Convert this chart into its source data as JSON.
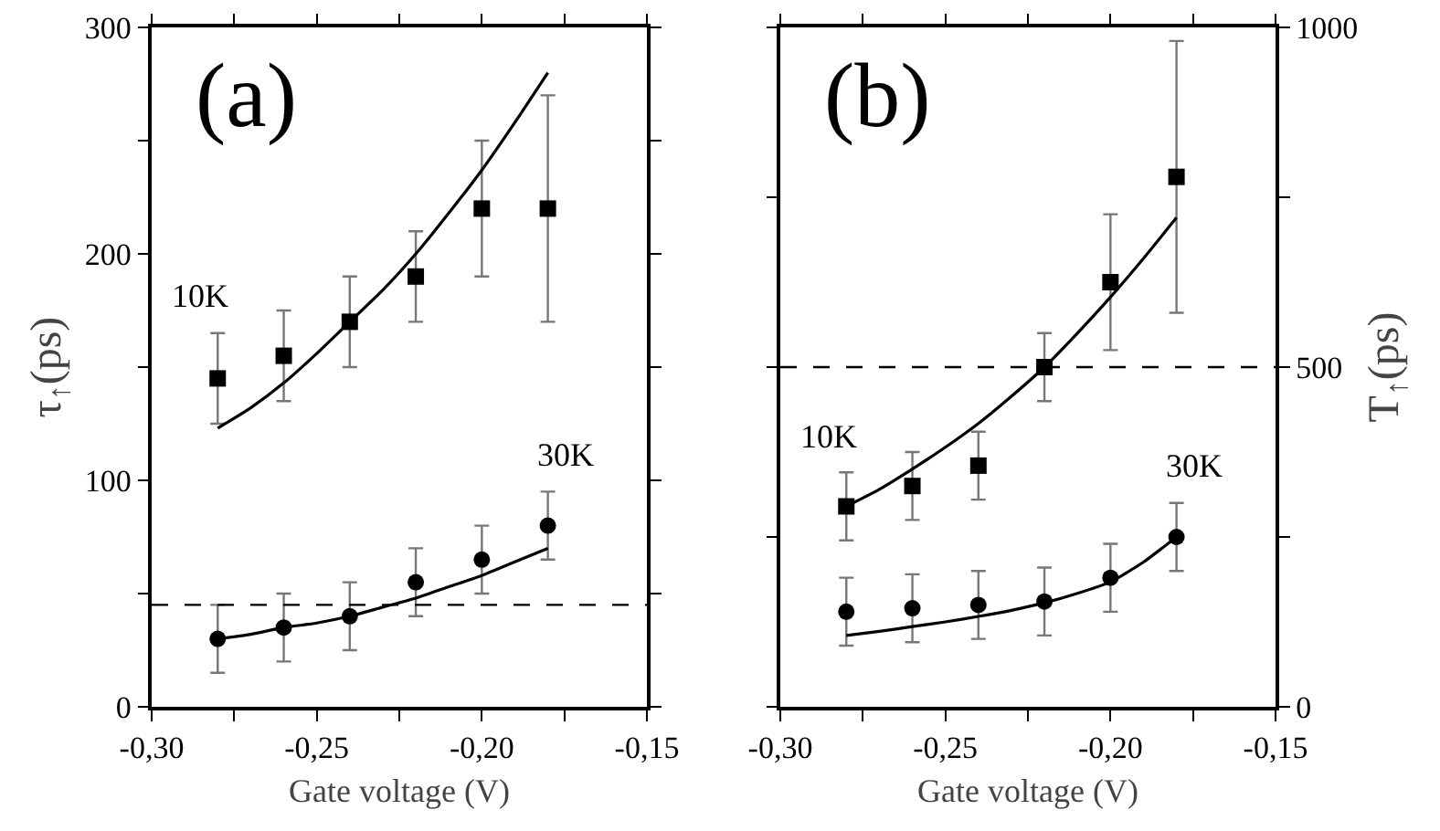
{
  "chart_data": [
    {
      "type": "scatter",
      "title": "(a)",
      "xlabel": "Gate voltage (V)",
      "ylabel": "τ$_{↑}$(ps)",
      "x": [
        -0.28,
        -0.26,
        -0.24,
        -0.22,
        -0.2,
        -0.18
      ],
      "xlim": [
        -0.3,
        -0.15
      ],
      "xticks": [
        {
          "value": -0.3,
          "label": "-0,30"
        },
        {
          "value": -0.275,
          "label": null
        },
        {
          "value": -0.25,
          "label": "-0,25"
        },
        {
          "value": -0.225,
          "label": null
        },
        {
          "value": -0.2,
          "label": "-0,20"
        },
        {
          "value": -0.175,
          "label": null
        },
        {
          "value": -0.15,
          "label": "-0,15"
        }
      ],
      "ylim": [
        0,
        300
      ],
      "yticks": [
        0,
        {
          "value": 50,
          "label": null
        },
        100,
        {
          "value": 150,
          "label": null
        },
        200,
        {
          "value": 250,
          "label": null
        },
        300
      ],
      "grid": false,
      "legend": false,
      "series": [
        {
          "name": "10K",
          "color": "#000000",
          "marker": "square",
          "values": [
            145,
            155,
            170,
            190,
            220,
            220
          ],
          "errors": [
            20,
            20,
            20,
            20,
            30,
            50
          ]
        },
        {
          "name": "30K",
          "color": "#000000",
          "marker": "circle",
          "values": [
            30,
            35,
            40,
            55,
            65,
            80
          ],
          "errors": [
            15,
            15,
            15,
            15,
            15,
            15
          ]
        },
        {
          "type": "line",
          "color": "#000000",
          "marker": "none",
          "line_style": "solid",
          "x": [
            -0.28,
            -0.27,
            -0.26,
            -0.25,
            -0.24,
            -0.23,
            -0.22,
            -0.21,
            -0.2,
            -0.19,
            -0.18
          ],
          "values": [
            123,
            132,
            143,
            156,
            170,
            184,
            200,
            218,
            237,
            258,
            280
          ]
        },
        {
          "type": "line",
          "color": "#000000",
          "marker": "none",
          "line_style": "solid",
          "x": [
            -0.28,
            -0.27,
            -0.26,
            -0.25,
            -0.24,
            -0.23,
            -0.22,
            -0.21,
            -0.2,
            -0.19,
            -0.18
          ],
          "values": [
            30,
            32,
            35,
            37,
            40,
            44,
            48,
            53,
            58,
            64,
            70
          ]
        }
      ],
      "ref_lines": [
        {
          "axis": "y",
          "value": 45,
          "color": "#000000",
          "line_style": "dashed"
        }
      ]
    },
    {
      "type": "scatter",
      "title": "(b)",
      "xlabel": "Gate voltage (V)",
      "y2label": "T$_{↑}$(ps)",
      "x": [
        -0.28,
        -0.26,
        -0.24,
        -0.22,
        -0.2,
        -0.18
      ],
      "xlim": [
        -0.3,
        -0.15
      ],
      "xticks": [
        {
          "value": -0.3,
          "label": "-0,30"
        },
        {
          "value": -0.275,
          "label": null
        },
        {
          "value": -0.25,
          "label": "-0,25"
        },
        {
          "value": -0.225,
          "label": null
        },
        {
          "value": -0.2,
          "label": "-0,20"
        },
        {
          "value": -0.175,
          "label": null
        },
        {
          "value": -0.15,
          "label": "-0,15"
        }
      ],
      "y2lim": [
        0,
        1000
      ],
      "y2ticks": [
        0,
        {
          "value": 250,
          "label": null
        },
        500,
        {
          "value": 750,
          "label": null
        },
        1000
      ],
      "grid": false,
      "legend": false,
      "series": [
        {
          "name": "10K",
          "color": "#000000",
          "marker": "square",
          "axis": "y2",
          "values": [
            295,
            325,
            355,
            500,
            625,
            780
          ],
          "errors": [
            50,
            50,
            50,
            50,
            100,
            200
          ]
        },
        {
          "name": "30K",
          "color": "#000000",
          "marker": "circle",
          "axis": "y2",
          "values": [
            140,
            145,
            150,
            155,
            190,
            250
          ],
          "errors": [
            50,
            50,
            50,
            50,
            50,
            50
          ]
        },
        {
          "type": "line",
          "color": "#000000",
          "marker": "none",
          "line_style": "solid",
          "axis": "y2",
          "x": [
            -0.28,
            -0.27,
            -0.26,
            -0.25,
            -0.24,
            -0.23,
            -0.22,
            -0.21,
            -0.2,
            -0.19,
            -0.18
          ],
          "values": [
            295,
            320,
            350,
            382,
            417,
            457,
            500,
            550,
            603,
            660,
            720
          ]
        },
        {
          "type": "line",
          "color": "#000000",
          "marker": "none",
          "line_style": "solid",
          "axis": "y2",
          "x": [
            -0.28,
            -0.27,
            -0.26,
            -0.25,
            -0.24,
            -0.23,
            -0.22,
            -0.21,
            -0.2,
            -0.19,
            -0.18
          ],
          "values": [
            105,
            111,
            118,
            125,
            133,
            142,
            153,
            167,
            184,
            213,
            250
          ]
        }
      ],
      "ref_lines": [
        {
          "axis": "y2",
          "value": 500,
          "color": "#000000",
          "line_style": "dashed"
        }
      ]
    }
  ]
}
